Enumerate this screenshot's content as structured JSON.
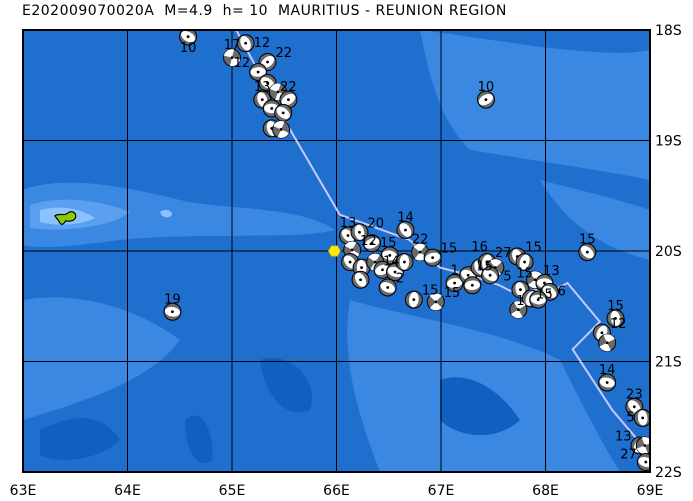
{
  "title": "E202009070020A  M=4.9  h= 10  MAURITIUS - REUNION REGION",
  "map": {
    "lon_range": [
      63,
      69
    ],
    "lat_range_south": [
      18,
      22
    ],
    "lon_labels": [
      "63E",
      "64E",
      "65E",
      "66E",
      "67E",
      "68E",
      "69E"
    ],
    "lat_labels": [
      "18S",
      "19S",
      "20S",
      "21S",
      "22S"
    ],
    "colors": {
      "ocean": "#1f6fcf",
      "ocean_shallow": "#3a88e2",
      "ocean_deep": "#0f60c0",
      "plate_boundary": "#c8c8f8",
      "epicenter": "#ffee00",
      "island": "#88cc00",
      "mechanism_compression": "#6a6a6a",
      "mechanism_dilatation": "#ffffff"
    },
    "epicenter": {
      "lon": 65.98,
      "lat": 20.0,
      "marker": "yellow-hexagon"
    },
    "island": {
      "lon": 63.4,
      "lat": 19.7
    },
    "plate_boundary": [
      [
        65.04,
        18.0
      ],
      [
        65.53,
        18.86
      ],
      [
        66.03,
        19.67
      ],
      [
        66.7,
        19.9
      ],
      [
        66.99,
        20.15
      ],
      [
        67.28,
        20.22
      ],
      [
        67.56,
        20.31
      ],
      [
        67.66,
        20.36
      ],
      [
        68.09,
        20.35
      ],
      [
        68.21,
        20.29
      ],
      [
        68.52,
        20.64
      ],
      [
        68.26,
        20.89
      ],
      [
        68.64,
        21.44
      ],
      [
        68.9,
        21.73
      ]
    ],
    "events": [
      {
        "lon": 64.58,
        "lat": 18.06,
        "depth": "10"
      },
      {
        "lon": 65.13,
        "lat": 18.12,
        "depth": "12"
      },
      {
        "lon": 65.0,
        "lat": 18.25,
        "depth": "17"
      },
      {
        "lon": 65.34,
        "lat": 18.29,
        "depth": "22"
      },
      {
        "lon": 65.25,
        "lat": 18.38,
        "depth": "12"
      },
      {
        "lon": 65.34,
        "lat": 18.48,
        "depth": ""
      },
      {
        "lon": 65.29,
        "lat": 18.63,
        "depth": "13"
      },
      {
        "lon": 65.44,
        "lat": 18.56,
        "depth": ""
      },
      {
        "lon": 65.54,
        "lat": 18.63,
        "depth": "22"
      },
      {
        "lon": 65.38,
        "lat": 18.71,
        "depth": ""
      },
      {
        "lon": 65.49,
        "lat": 18.75,
        "depth": ""
      },
      {
        "lon": 65.38,
        "lat": 18.89,
        "depth": ""
      },
      {
        "lon": 65.47,
        "lat": 18.9,
        "depth": ""
      },
      {
        "lon": 67.43,
        "lat": 18.63,
        "depth": "10"
      },
      {
        "lon": 64.43,
        "lat": 20.55,
        "depth": "19"
      },
      {
        "lon": 66.11,
        "lat": 19.86,
        "depth": "13"
      },
      {
        "lon": 66.22,
        "lat": 19.83,
        "depth": "20"
      },
      {
        "lon": 66.15,
        "lat": 19.99,
        "depth": "12"
      },
      {
        "lon": 66.34,
        "lat": 19.93,
        "depth": "15"
      },
      {
        "lon": 66.51,
        "lat": 20.04,
        "depth": ""
      },
      {
        "lon": 66.13,
        "lat": 20.1,
        "depth": ""
      },
      {
        "lon": 66.24,
        "lat": 20.15,
        "depth": ""
      },
      {
        "lon": 66.37,
        "lat": 20.1,
        "depth": "14"
      },
      {
        "lon": 66.44,
        "lat": 20.17,
        "depth": ""
      },
      {
        "lon": 66.56,
        "lat": 20.19,
        "depth": ""
      },
      {
        "lon": 66.66,
        "lat": 19.81,
        "depth": "14"
      },
      {
        "lon": 66.65,
        "lat": 20.1,
        "depth": ""
      },
      {
        "lon": 66.8,
        "lat": 20.01,
        "depth": "22"
      },
      {
        "lon": 66.92,
        "lat": 20.06,
        "depth": "15"
      },
      {
        "lon": 66.49,
        "lat": 20.33,
        "depth": "2"
      },
      {
        "lon": 66.23,
        "lat": 20.26,
        "depth": ""
      },
      {
        "lon": 66.74,
        "lat": 20.44,
        "depth": "15"
      },
      {
        "lon": 66.95,
        "lat": 20.46,
        "depth": "15"
      },
      {
        "lon": 67.13,
        "lat": 20.29,
        "depth": "1"
      },
      {
        "lon": 67.26,
        "lat": 20.22,
        "depth": "15"
      },
      {
        "lon": 67.37,
        "lat": 20.15,
        "depth": "16"
      },
      {
        "lon": 67.44,
        "lat": 20.1,
        "depth": "27"
      },
      {
        "lon": 67.52,
        "lat": 20.15,
        "depth": "5"
      },
      {
        "lon": 67.3,
        "lat": 20.31,
        "depth": ""
      },
      {
        "lon": 67.47,
        "lat": 20.22,
        "depth": ""
      },
      {
        "lon": 67.73,
        "lat": 20.05,
        "depth": "15"
      },
      {
        "lon": 67.8,
        "lat": 20.1,
        "depth": "15"
      },
      {
        "lon": 67.9,
        "lat": 20.26,
        "depth": "13"
      },
      {
        "lon": 67.99,
        "lat": 20.29,
        "depth": "15"
      },
      {
        "lon": 68.04,
        "lat": 20.37,
        "depth": "6"
      },
      {
        "lon": 67.76,
        "lat": 20.35,
        "depth": "1"
      },
      {
        "lon": 67.86,
        "lat": 20.43,
        "depth": ""
      },
      {
        "lon": 67.74,
        "lat": 20.53,
        "depth": ""
      },
      {
        "lon": 67.93,
        "lat": 20.44,
        "depth": ""
      },
      {
        "lon": 68.4,
        "lat": 20.01,
        "depth": "15"
      },
      {
        "lon": 68.67,
        "lat": 20.61,
        "depth": "15"
      },
      {
        "lon": 68.54,
        "lat": 20.74,
        "depth": "12"
      },
      {
        "lon": 68.59,
        "lat": 20.83,
        "depth": ""
      },
      {
        "lon": 68.59,
        "lat": 21.19,
        "depth": "14"
      },
      {
        "lon": 68.85,
        "lat": 21.41,
        "depth": "23"
      },
      {
        "lon": 68.93,
        "lat": 21.51,
        "depth": "5"
      },
      {
        "lon": 68.9,
        "lat": 21.76,
        "depth": "13"
      },
      {
        "lon": 68.95,
        "lat": 21.76,
        "depth": "27"
      },
      {
        "lon": 68.96,
        "lat": 21.91,
        "depth": ""
      }
    ]
  }
}
